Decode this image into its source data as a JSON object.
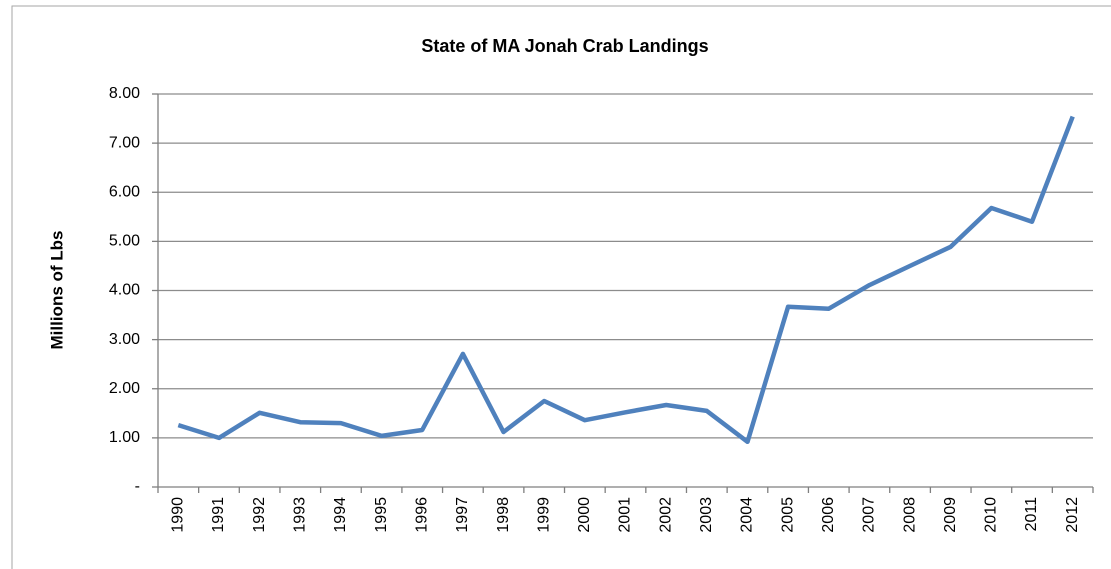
{
  "chart_data": {
    "type": "line",
    "title": "State of MA Jonah Crab Landings",
    "y_label": "Millions of Lbs",
    "categories": [
      "1990",
      "1991",
      "1992",
      "1993",
      "1994",
      "1995",
      "1996",
      "1997",
      "1998",
      "1999",
      "2000",
      "2001",
      "2002",
      "2003",
      "2004",
      "2005",
      "2006",
      "2007",
      "2008",
      "2009",
      "2010",
      "2011",
      "2012"
    ],
    "values": [
      1.26,
      1.0,
      1.51,
      1.32,
      1.3,
      1.04,
      1.16,
      2.71,
      1.12,
      1.75,
      1.36,
      1.52,
      1.67,
      1.55,
      0.92,
      3.67,
      3.63,
      4.11,
      4.5,
      4.89,
      5.68,
      5.4,
      7.54
    ],
    "color": "#4f81bd",
    "ylim": [
      0,
      8
    ],
    "yticks": [
      {
        "value": 0,
        "label": "-"
      },
      {
        "value": 1,
        "label": "1.00"
      },
      {
        "value": 2,
        "label": "2.00"
      },
      {
        "value": 3,
        "label": "3.00"
      },
      {
        "value": 4,
        "label": "4.00"
      },
      {
        "value": 5,
        "label": "5.00"
      },
      {
        "value": 6,
        "label": "6.00"
      },
      {
        "value": 7,
        "label": "7.00"
      },
      {
        "value": 8,
        "label": "8.00"
      }
    ],
    "grid": true
  }
}
